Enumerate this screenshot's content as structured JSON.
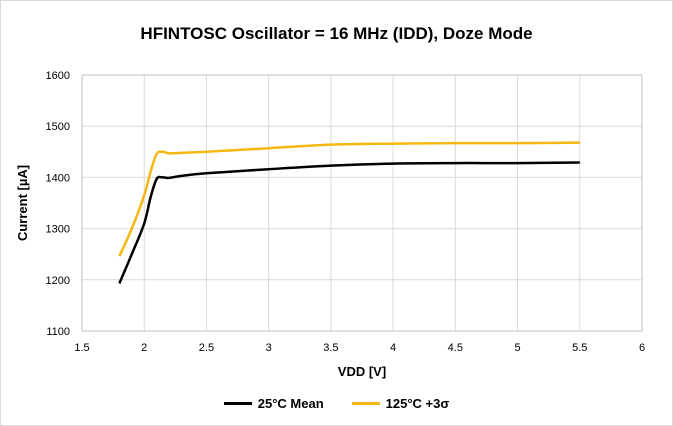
{
  "chart_data": {
    "type": "line",
    "title": "HFINTOSC Oscillator = 16 MHz (IDD), Doze Mode",
    "xlabel": "VDD [V]",
    "ylabel": "Current [µA]",
    "xlim": [
      1.5,
      6
    ],
    "ylim": [
      1100,
      1600
    ],
    "x_ticks": [
      "1.5",
      "2",
      "2.5",
      "3",
      "3.5",
      "4",
      "4.5",
      "5",
      "5.5",
      "6"
    ],
    "y_ticks": [
      "1100",
      "1200",
      "1300",
      "1400",
      "1500",
      "1600"
    ],
    "grid": true,
    "legend_position": "bottom",
    "series": [
      {
        "name": "25°C Mean",
        "color": "#000000",
        "x": [
          1.8,
          1.9,
          2.0,
          2.05,
          2.1,
          2.15,
          2.2,
          2.3,
          2.5,
          3.0,
          3.5,
          4.0,
          4.5,
          5.0,
          5.5
        ],
        "values": [
          1193,
          1250,
          1310,
          1360,
          1397,
          1400,
          1399,
          1403,
          1408,
          1416,
          1423,
          1427,
          1428,
          1428,
          1429
        ]
      },
      {
        "name": "125°C +3σ",
        "color": "#f5b812",
        "x": [
          1.8,
          1.9,
          2.0,
          2.05,
          2.1,
          2.15,
          2.2,
          2.3,
          2.5,
          3.0,
          3.5,
          4.0,
          4.5,
          5.0,
          5.5
        ],
        "values": [
          1246,
          1300,
          1365,
          1410,
          1446,
          1450,
          1447,
          1448,
          1450,
          1457,
          1464,
          1466,
          1467,
          1467,
          1468
        ]
      }
    ]
  }
}
